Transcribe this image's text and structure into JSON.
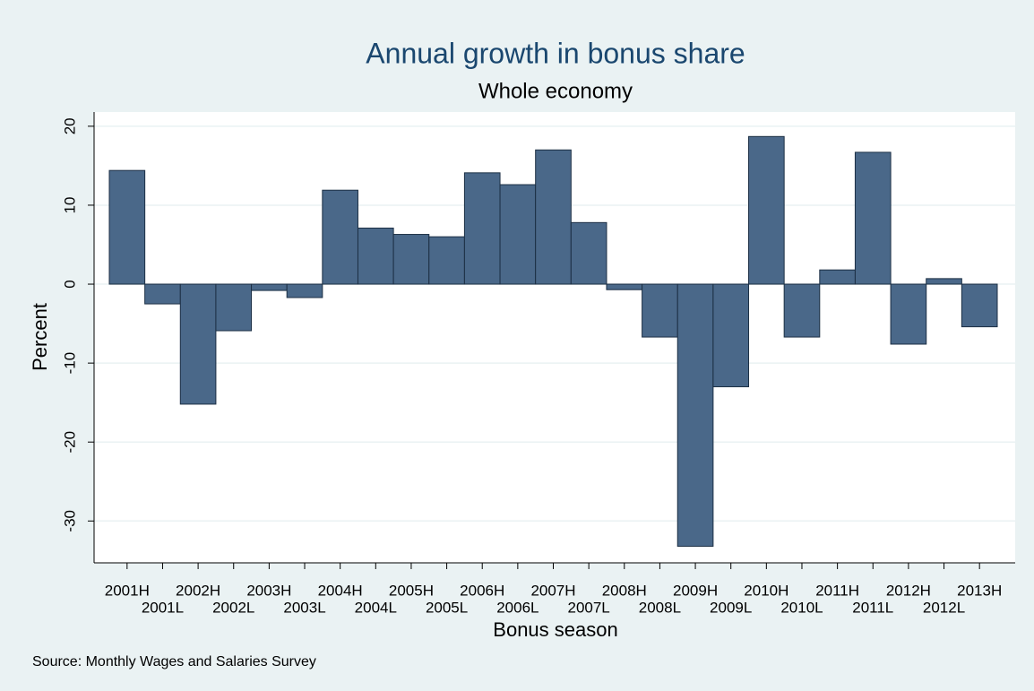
{
  "chart_data": {
    "type": "bar",
    "title": "Annual growth in bonus share",
    "subtitle": "Whole economy",
    "x_label": "Bonus season",
    "y_label": "Percent",
    "note": "Source: Monthly Wages and Salaries Survey",
    "categories": [
      "2001H",
      "2001L",
      "2002H",
      "2002L",
      "2003H",
      "2003L",
      "2004H",
      "2004L",
      "2005H",
      "2005L",
      "2006H",
      "2006L",
      "2007H",
      "2007L",
      "2008H",
      "2008L",
      "2009H",
      "2009L",
      "2010H",
      "2010L",
      "2011H",
      "2011L",
      "2012H",
      "2012L",
      "2013H"
    ],
    "values": [
      14.4,
      -2.5,
      -15.2,
      -5.9,
      -0.8,
      -1.7,
      11.9,
      7.1,
      6.3,
      6.0,
      14.1,
      12.6,
      17.0,
      7.8,
      -0.7,
      -6.7,
      -33.2,
      -13.0,
      18.7,
      -6.7,
      1.8,
      16.7,
      -7.6,
      0.7,
      -5.4
    ],
    "color": "#4a6889",
    "ylim": [
      -35.3,
      21.8
    ],
    "yticks": [
      -30,
      -20,
      -10,
      0,
      10,
      20
    ],
    "grid": true
  }
}
